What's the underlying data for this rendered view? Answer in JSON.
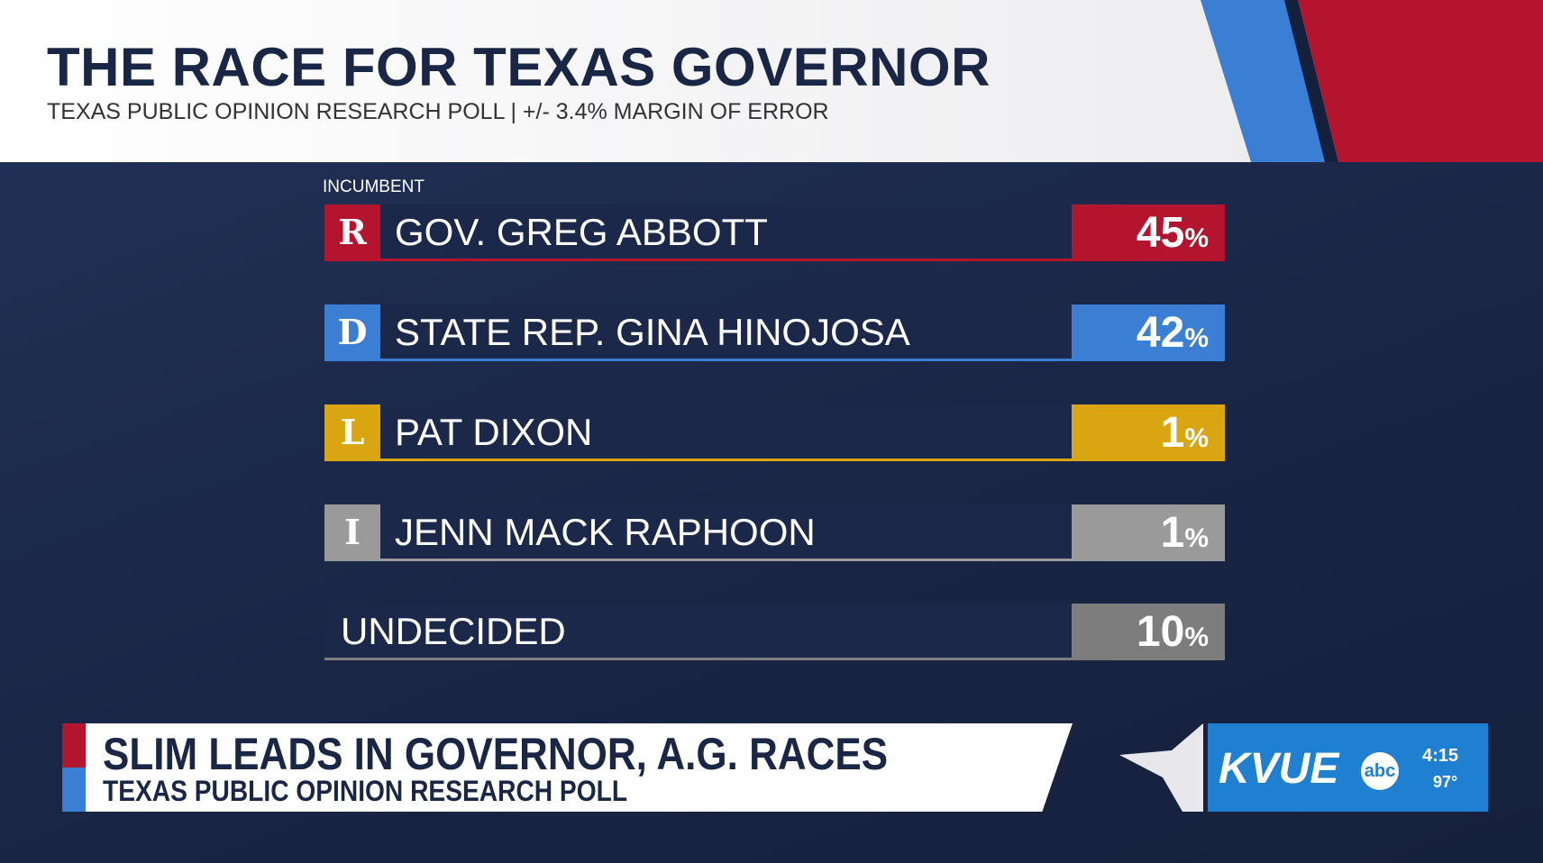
{
  "header": {
    "title": "THE RACE FOR TEXAS GOVERNOR",
    "subtitle": "TEXAS PUBLIC OPINION RESEARCH POLL | +/- 3.4% MARGIN OF ERROR"
  },
  "incumbent": "INCUMBENT",
  "unit": "%",
  "rows": [
    {
      "party": "R",
      "name": "GOV. GREG ABBOTT",
      "value": 45,
      "color": "#b5142e"
    },
    {
      "party": "D",
      "name": "STATE REP. GINA HINOJOSA",
      "value": 42,
      "color": "#3b7fd4"
    },
    {
      "party": "L",
      "name": "PAT DIXON",
      "value": 1,
      "color": "#d9a611"
    },
    {
      "party": "I",
      "name": "JENN MACK RAPHOON",
      "value": 1,
      "color": "#9a9a9a"
    },
    {
      "name": "UNDECIDED",
      "value": 10,
      "color": "#7d7d7d"
    }
  ],
  "banner": {
    "headline": "SLIM LEADS IN GOVERNOR, A.G. RACES",
    "subheadline": "TEXAS PUBLIC OPINION RESEARCH POLL"
  },
  "logo": {
    "station": "KVUE",
    "network": "abc",
    "time": "4:15",
    "temperature": "97°"
  }
}
